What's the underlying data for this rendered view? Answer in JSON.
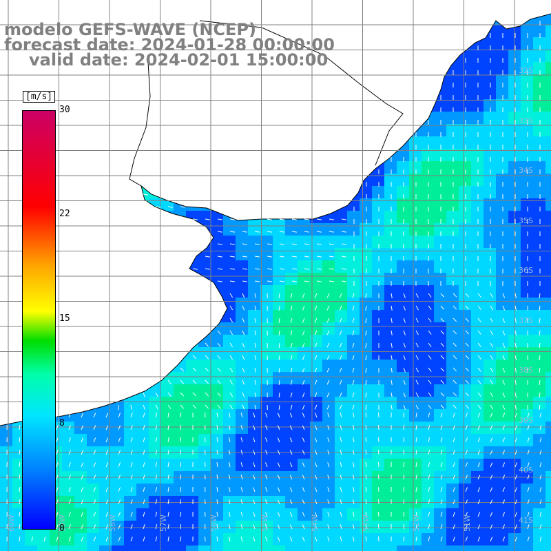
{
  "title": {
    "line1": "modelo GEFS-WAVE (NCEP)",
    "line2": "forecast date: 2024-01-28 00:00:00",
    "line3": "valid date: 2024-02-01 15:00:00"
  },
  "colorbar": {
    "unit": "[m/s]",
    "ticks": [
      "30",
      "22",
      "15",
      "8",
      "0"
    ],
    "colors": [
      "#0000ff",
      "#0080ff",
      "#00e5ff",
      "#00ffaa",
      "#00dd00",
      "#ffff00",
      "#ffa500",
      "#ff0000",
      "#cc0066"
    ]
  },
  "map": {
    "land_color": "#ffffff",
    "coastline_color": "#000000",
    "grid_color": "#808080",
    "arrow_color": "#ffffff",
    "lat_labels": [
      "32S",
      "33S",
      "34S",
      "35S",
      "36S",
      "37S",
      "38S",
      "39S",
      "40S",
      "41S"
    ],
    "lon_labels": [
      "60W",
      "59W",
      "58W",
      "57W",
      "56W",
      "55W",
      "54W",
      "53W",
      "52W",
      "51W"
    ]
  }
}
